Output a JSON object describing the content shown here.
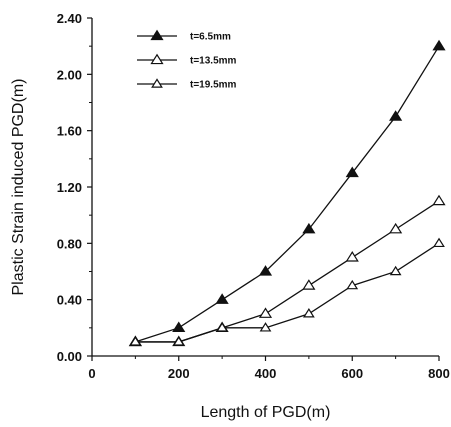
{
  "chart_data": {
    "type": "line",
    "title": "",
    "xlabel": "Length of PGD(m)",
    "ylabel": "Plastic Strain induced PGD(m)",
    "xlim": [
      0,
      800
    ],
    "ylim": [
      0,
      2.4
    ],
    "x_ticks": [
      "0",
      "200",
      "400",
      "600",
      "800"
    ],
    "y_ticks": [
      "0.00",
      "0.40",
      "0.80",
      "1.20",
      "1.60",
      "2.00",
      "2.40"
    ],
    "grid": false,
    "legend_position": "top-left",
    "x": [
      100,
      200,
      300,
      400,
      500,
      600,
      700,
      800
    ],
    "series": [
      {
        "name": "t=6.5mm",
        "marker": "filled-triangle",
        "values": [
          0.1,
          0.2,
          0.4,
          0.6,
          0.9,
          1.3,
          1.7,
          2.2
        ]
      },
      {
        "name": "t=13.5mm",
        "marker": "open-triangle",
        "values": [
          0.1,
          0.1,
          0.2,
          0.3,
          0.5,
          0.7,
          0.9,
          1.1
        ]
      },
      {
        "name": "t=19.5mm",
        "marker": "open-triangle-small",
        "values": [
          0.1,
          0.1,
          0.2,
          0.2,
          0.3,
          0.5,
          0.6,
          0.8
        ]
      }
    ]
  },
  "colors": {
    "ink": "#111111",
    "background": "#ffffff"
  }
}
